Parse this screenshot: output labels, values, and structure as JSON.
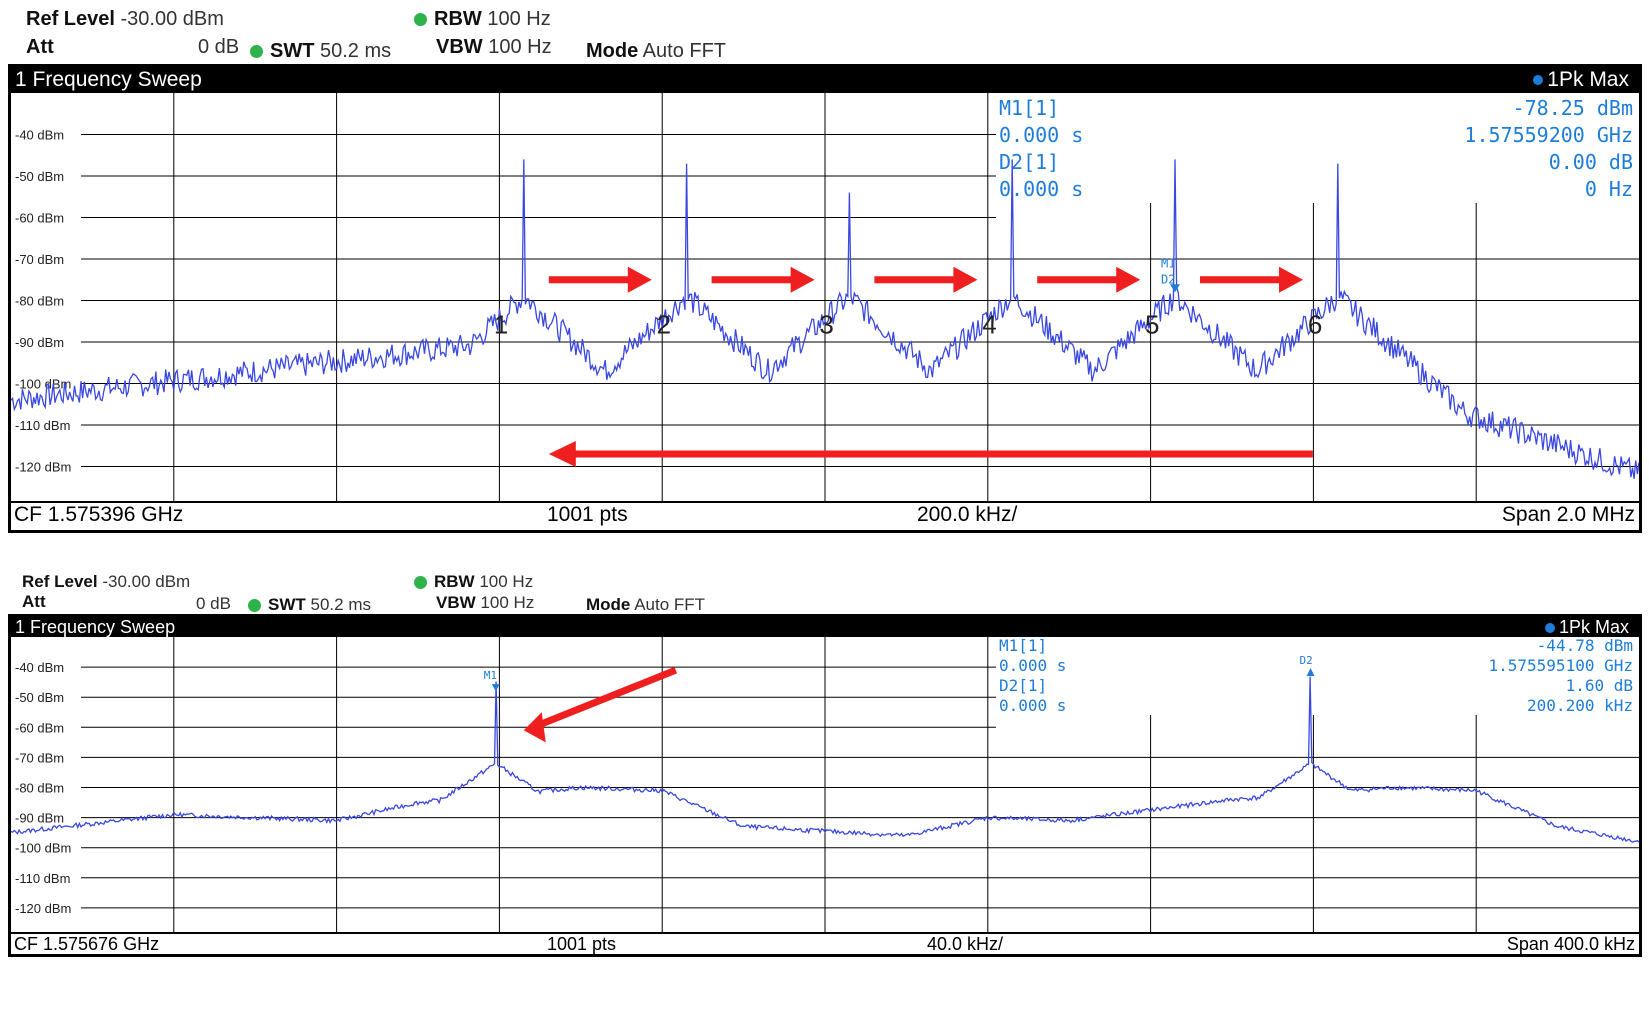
{
  "colors": {
    "trace": "#3a48e0",
    "marker": "#1e7dd8",
    "arrow": "#ef1f1f",
    "grid": "#000000"
  },
  "panels": [
    {
      "settings": {
        "ref_level_label": "Ref Level",
        "ref_level": "-30.00 dBm",
        "att_label": "Att",
        "att": "0 dB",
        "swt_label": "SWT",
        "swt": "50.2 ms",
        "rbw_label": "RBW",
        "rbw": "100 Hz",
        "vbw_label": "VBW",
        "vbw": "100 Hz",
        "mode_label": "Mode",
        "mode": "Auto FFT"
      },
      "title": "1 Frequency Sweep",
      "trace_label": "1Pk Max",
      "markers": {
        "m1_label": "M1[1]",
        "m1_time": "0.000 s",
        "m1_level": "-78.25 dBm",
        "m1_freq": "1.57559200 GHz",
        "d2_label": "D2[1]",
        "d2_time": "0.000 s",
        "d2_level": "0.00 dB",
        "d2_freq": "0 Hz"
      },
      "footer": {
        "cf": "CF 1.575396 GHz",
        "pts": "1001 pts",
        "div": "200.0 kHz/",
        "span": "Span 2.0 MHz"
      },
      "peak_labels": [
        "1",
        "2",
        "3",
        "4",
        "5",
        "6"
      ],
      "marker_tags": [
        "M1",
        "D2"
      ]
    },
    {
      "settings": {
        "ref_level_label": "Ref Level",
        "ref_level": "-30.00 dBm",
        "att_label": "Att",
        "att": "0 dB",
        "swt_label": "SWT",
        "swt": "50.2 ms",
        "rbw_label": "RBW",
        "rbw": "100 Hz",
        "vbw_label": "VBW",
        "vbw": "100 Hz",
        "mode_label": "Mode",
        "mode": "Auto FFT"
      },
      "title": "1 Frequency Sweep",
      "trace_label": "1Pk Max",
      "markers": {
        "m1_label": "M1[1]",
        "m1_time": "0.000 s",
        "m1_level": "-44.78 dBm",
        "m1_freq": "1.575595100 GHz",
        "d2_label": "D2[1]",
        "d2_time": "0.000 s",
        "d2_level": "1.60 dB",
        "d2_freq": "200.200 kHz"
      },
      "footer": {
        "cf": "CF 1.575676 GHz",
        "pts": "1001 pts",
        "div": "40.0 kHz/",
        "span": "Span 400.0 kHz"
      },
      "marker_tags": [
        "M1",
        "D2"
      ]
    }
  ],
  "chart_data": [
    {
      "type": "line",
      "xlabel": "",
      "ylabel": "",
      "x_unit": "MHz",
      "xlim": [
        1574.396,
        1576.396
      ],
      "ylim": [
        -130,
        -30
      ],
      "yticks": [
        -40,
        -50,
        -60,
        -70,
        -80,
        -90,
        -100,
        -110,
        -120
      ],
      "ytick_labels": [
        "-40 dBm",
        "-50 dBm",
        "-60 dBm",
        "-70 dBm",
        "-80 dBm",
        "-90 dBm",
        "-100 dBm",
        "-110 dBm",
        "-120 dBm"
      ],
      "grid": true,
      "series": [
        {
          "x": [
            1574.396,
            1574.596,
            1574.796,
            1574.996,
            1575.026,
            1575.196,
            1575.226,
            1575.396,
            1575.426,
            1575.596,
            1575.626,
            1575.796,
            1575.826,
            1575.996,
            1576.026,
            1576.196,
            1576.396
          ],
          "y": [
            -100,
            -105,
            -98,
            -89,
            -46,
            -95,
            -47,
            -98,
            -54,
            -100,
            -46,
            -100,
            -46,
            -99,
            -47,
            -110,
            -122
          ]
        }
      ],
      "peaks": {
        "x": [
          1575.026,
          1575.226,
          1575.426,
          1575.626,
          1575.826,
          1576.026
        ],
        "y": [
          -46,
          -47,
          -54,
          -46,
          -46,
          -47
        ]
      }
    },
    {
      "type": "line",
      "xlabel": "",
      "ylabel": "",
      "x_unit": "MHz",
      "xlim": [
        1575.476,
        1575.876
      ],
      "ylim": [
        -130,
        -30
      ],
      "yticks": [
        -40,
        -50,
        -60,
        -70,
        -80,
        -90,
        -100,
        -110,
        -120
      ],
      "ytick_labels": [
        "-40 dBm",
        "-50 dBm",
        "-60 dBm",
        "-70 dBm",
        "-80 dBm",
        "-90 dBm",
        "-100 dBm",
        "-110 dBm",
        "-120 dBm"
      ],
      "grid": true,
      "series": [
        {
          "x": [
            1575.476,
            1575.516,
            1575.556,
            1575.595,
            1575.636,
            1575.676,
            1575.716,
            1575.756,
            1575.795,
            1575.836,
            1575.876
          ],
          "y": [
            -95,
            -89,
            -91,
            -44.8,
            -81,
            -94,
            -91,
            -90,
            -43.2,
            -81,
            -98
          ]
        }
      ],
      "peaks": {
        "x": [
          1575.5951,
          1575.7953
        ],
        "y": [
          -44.78,
          -43.18
        ]
      }
    }
  ]
}
